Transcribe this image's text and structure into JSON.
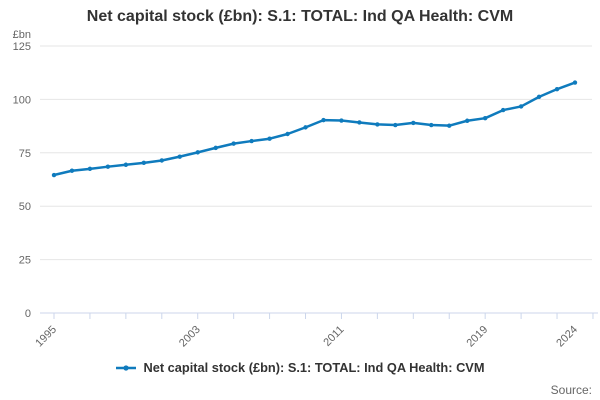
{
  "header": {
    "title": "Net capital stock (£bn): S.1: TOTAL: Ind QA Health: CVM"
  },
  "y_axis": {
    "unit": "£bn",
    "ticks": [
      0,
      25,
      50,
      75,
      100,
      125
    ]
  },
  "x_axis": {
    "labeled_ticks": [
      1995,
      2003,
      2011,
      2019,
      2024
    ],
    "minor_tick_step": 2,
    "start": 1995,
    "end": 2024
  },
  "legend": {
    "items": [
      {
        "label": "Net capital stock (£bn): S.1: TOTAL: Ind QA Health: CVM"
      }
    ]
  },
  "footer": {
    "source_label": "Source:"
  },
  "colors": {
    "line": "#0f7bbd",
    "grid": "#e6e6e6",
    "axis": "#ccd6eb",
    "tick_label": "#666666",
    "title_text": "#333333",
    "legend_text": "#333333",
    "source_text": "#666666",
    "background": "#ffffff"
  },
  "chart_data": {
    "type": "line",
    "title": "Net capital stock (£bn): S.1: TOTAL: Ind QA Health: CVM",
    "xlabel": "",
    "ylabel": "£bn",
    "ylim": [
      0,
      125
    ],
    "yticks": [
      0,
      25,
      75,
      50,
      100,
      125
    ],
    "xticks_labeled": [
      1995,
      2003,
      2011,
      2019,
      2024
    ],
    "grid": true,
    "legend_position": "bottom",
    "x": [
      1995,
      1996,
      1997,
      1998,
      1999,
      2000,
      2001,
      2002,
      2003,
      2004,
      2005,
      2006,
      2007,
      2008,
      2009,
      2010,
      2011,
      2012,
      2013,
      2014,
      2015,
      2016,
      2017,
      2018,
      2019,
      2020,
      2021,
      2022,
      2023,
      2024
    ],
    "series": [
      {
        "name": "Net capital stock (£bn): S.1: TOTAL: Ind QA Health: CVM",
        "values": [
          64.6,
          66.6,
          67.5,
          68.5,
          69.4,
          70.3,
          71.4,
          73.2,
          75.2,
          77.3,
          79.3,
          80.5,
          81.6,
          83.8,
          86.9,
          90.3,
          90.1,
          89.2,
          88.3,
          88.0,
          89.0,
          88.0,
          87.7,
          90.0,
          91.2,
          95.0,
          96.7,
          101.2,
          104.8,
          107.9
        ]
      }
    ]
  }
}
